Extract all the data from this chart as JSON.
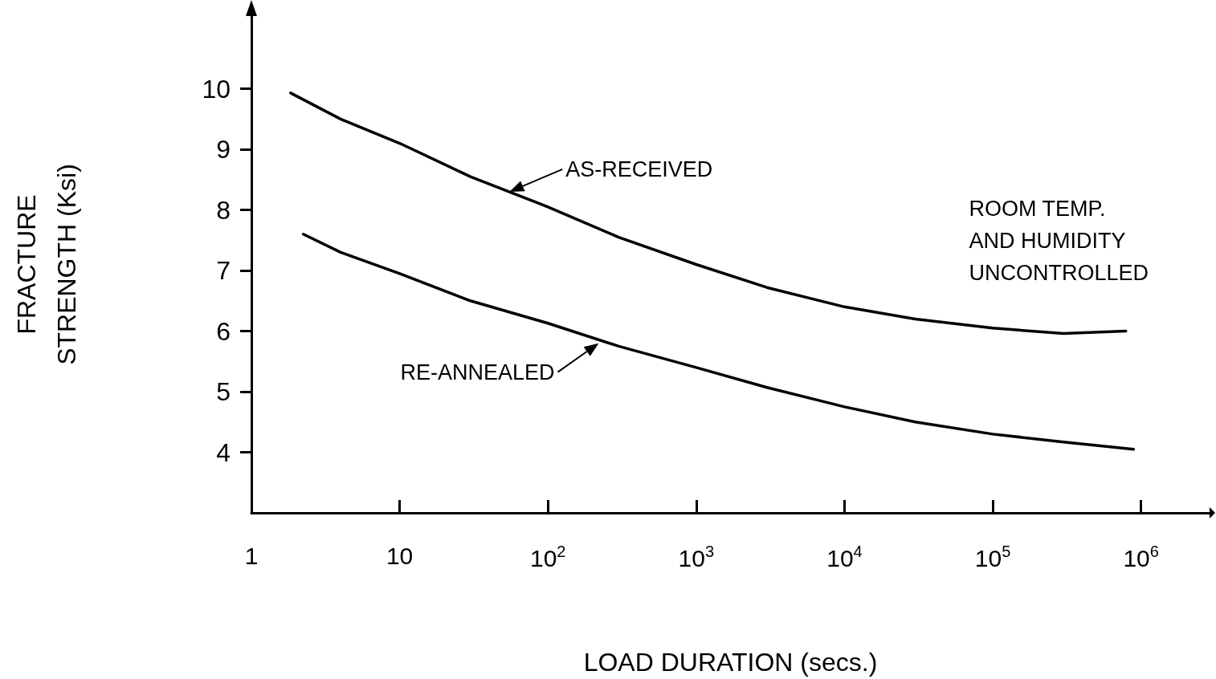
{
  "chart_data": {
    "type": "line",
    "xlabel": "LOAD DURATION (secs.)",
    "ylabel": "FRACTURE\nSTRENGTH (Ksi)",
    "log": "x",
    "xlim": [
      1,
      2900000
    ],
    "ylim": [
      3,
      11.2
    ],
    "xticks": [
      1,
      10,
      {
        "value": 100,
        "label": "10$^{2}$"
      },
      {
        "value": 1000,
        "label": "10$^{3}$"
      },
      {
        "value": 10000,
        "label": "10$^{4}$"
      },
      {
        "value": 100000,
        "label": "10$^{5}$"
      },
      {
        "value": 1000000,
        "label": "10$^{6}$"
      }
    ],
    "yticks": [
      4,
      5,
      6,
      7,
      8,
      9,
      10
    ],
    "grid": false,
    "marker": "none",
    "line_style": "solid",
    "series": [
      {
        "color": "#000000",
        "x": [
          1.84,
          4,
          10,
          30,
          100,
          300,
          1000,
          3000,
          10000,
          30000,
          100000,
          300000,
          790000
        ],
        "values": [
          9.93,
          9.5,
          9.1,
          8.55,
          8.05,
          7.55,
          7.1,
          6.72,
          6.4,
          6.2,
          6.05,
          5.96,
          6.0
        ]
      },
      {
        "color": "#000000",
        "x": [
          2.24,
          4,
          10,
          30,
          100,
          300,
          1000,
          3000,
          10000,
          30000,
          100000,
          300000,
          890000
        ],
        "values": [
          7.6,
          7.3,
          6.95,
          6.5,
          6.13,
          5.75,
          5.4,
          5.07,
          4.75,
          4.5,
          4.3,
          4.17,
          4.05
        ]
      }
    ],
    "annotations": [
      {
        "text": "AS-RECEIVED",
        "x": 55,
        "y": 8.3
      },
      {
        "text": "RE-ANNEALED",
        "x": 220,
        "y": 5.8
      },
      "ROOM TEMP.\nAND HUMIDITY\nUNCONTROLLED"
    ]
  }
}
